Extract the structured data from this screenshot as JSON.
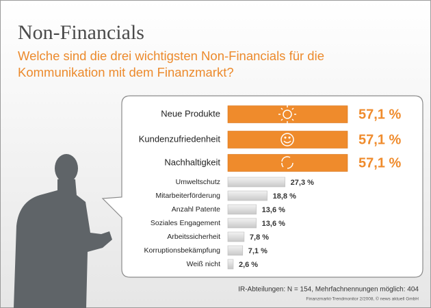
{
  "chart_data": {
    "type": "bar",
    "title": "Non-Financials",
    "subtitle": "Welche sind die drei wichtigsten Non-Financials für die Kommunikation mit dem Finanzmarkt?",
    "categories": [
      "Neue Produkte",
      "Kundenzufriedenheit",
      "Nachhaltigkeit",
      "Umweltschutz",
      "Mitarbeiterförderung",
      "Anzahl Patente",
      "Soziales Engagement",
      "Arbeitssicherheit",
      "Korruptionsbekämpfung",
      "Weiß nicht"
    ],
    "values": [
      57.1,
      57.1,
      57.1,
      27.3,
      18.8,
      13.6,
      13.6,
      7.8,
      7.1,
      2.6
    ],
    "value_labels": [
      "57,1 %",
      "57,1 %",
      "57,1 %",
      "27,3 %",
      "18,8 %",
      "13,6 %",
      "13,6 %",
      "7,8 %",
      "7,1 %",
      "2,6 %"
    ],
    "colors": [
      "#ef8b2c",
      "#ef8b2c",
      "#ef8b2c",
      "#d9d9d9",
      "#d9d9d9",
      "#d9d9d9",
      "#d9d9d9",
      "#d9d9d9",
      "#d9d9d9",
      "#d9d9d9"
    ],
    "footnote": "IR-Abteilungen:  N = 154, Mehrfachnennungen möglich: 404",
    "source": "Finanzmarkt-Trendmonitor 2/2008, © news aktuell GmbH"
  }
}
